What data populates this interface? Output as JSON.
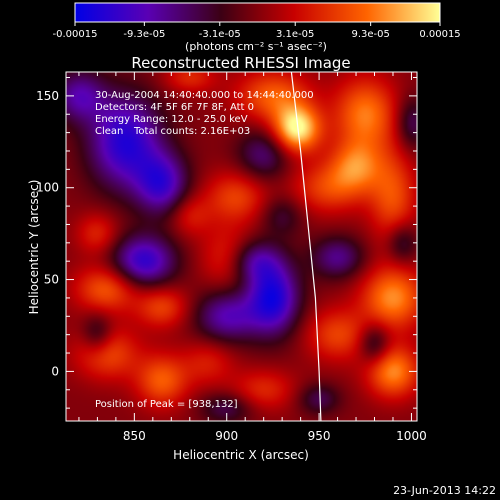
{
  "chart_data": {
    "type": "heatmap",
    "title": "Reconstructed RHESSI Image",
    "xlabel": "Heliocentric X (arcsec)",
    "ylabel": "Heliocentric Y (arcsec)",
    "xlim": [
      813,
      1003
    ],
    "ylim": [
      -27,
      163
    ],
    "x_ticks": [
      850,
      900,
      950,
      1000
    ],
    "y_ticks": [
      0,
      50,
      100,
      150
    ],
    "colorbar": {
      "min": -0.00015,
      "max": 0.00015,
      "tick_labels": [
        "-0.00015",
        "-9.3e-05",
        "-3.1e-05",
        "3.1e-05",
        "9.3e-05",
        "0.00015"
      ],
      "tick_values": [
        -0.00015,
        -9.3e-05,
        -3.1e-05,
        3.1e-05,
        9.3e-05,
        0.00015
      ],
      "unit_label": "(photons cm⁻² s⁻¹ asec⁻²)",
      "colors": [
        "#0000e6",
        "#5a00b4",
        "#3c0014",
        "#c80000",
        "#ff6400",
        "#ffff96"
      ]
    },
    "annotations": [
      "30-Aug-2004 14:40:40.000 to 14:44:40.000",
      "Detectors: 4F 5F 6F 7F 8F, Att 0",
      "Energy Range: 12.0 - 25.0 keV",
      "Clean",
      "Total counts: 2.16E+03"
    ],
    "peak_label": "Position of Peak = [938,132]",
    "peak": {
      "x": 938,
      "y": 132
    },
    "limb_line": [
      [
        935,
        163
      ],
      [
        940,
        120
      ],
      [
        944,
        80
      ],
      [
        948,
        40
      ],
      [
        950,
        0
      ],
      [
        951,
        -27
      ]
    ],
    "sources": [
      {
        "x": 938,
        "y": 132,
        "sx": 9,
        "sy": 9,
        "a": 1.0
      },
      {
        "x": 925,
        "y": 150,
        "sx": 14,
        "sy": 10,
        "a": 0.55
      },
      {
        "x": 975,
        "y": 140,
        "sx": 12,
        "sy": 14,
        "a": 0.65
      },
      {
        "x": 970,
        "y": 112,
        "sx": 10,
        "sy": 10,
        "a": 0.55
      },
      {
        "x": 990,
        "y": 95,
        "sx": 9,
        "sy": 18,
        "a": 0.5
      },
      {
        "x": 955,
        "y": 100,
        "sx": 14,
        "sy": 10,
        "a": 0.45
      },
      {
        "x": 990,
        "y": 40,
        "sx": 12,
        "sy": 12,
        "a": 0.7
      },
      {
        "x": 990,
        "y": 0,
        "sx": 10,
        "sy": 10,
        "a": 0.7
      },
      {
        "x": 960,
        "y": 20,
        "sx": 12,
        "sy": 10,
        "a": 0.45
      },
      {
        "x": 905,
        "y": 95,
        "sx": 12,
        "sy": 10,
        "a": 0.45
      },
      {
        "x": 900,
        "y": 62,
        "sx": 10,
        "sy": 12,
        "a": 0.35
      },
      {
        "x": 835,
        "y": 45,
        "sx": 12,
        "sy": 9,
        "a": 0.55
      },
      {
        "x": 865,
        "y": 35,
        "sx": 10,
        "sy": 8,
        "a": 0.45
      },
      {
        "x": 835,
        "y": 10,
        "sx": 12,
        "sy": 10,
        "a": 0.5
      },
      {
        "x": 865,
        "y": -5,
        "sx": 10,
        "sy": 10,
        "a": 0.55
      },
      {
        "x": 890,
        "y": 5,
        "sx": 10,
        "sy": 9,
        "a": 0.3
      },
      {
        "x": 920,
        "y": -10,
        "sx": 12,
        "sy": 8,
        "a": 0.35
      },
      {
        "x": 830,
        "y": 75,
        "sx": 8,
        "sy": 8,
        "a": 0.35
      },
      {
        "x": 880,
        "y": 85,
        "sx": 8,
        "sy": 8,
        "a": 0.3
      },
      {
        "x": 880,
        "y": 160,
        "sx": 10,
        "sy": 6,
        "a": 0.35
      },
      {
        "x": 845,
        "y": 125,
        "sx": 14,
        "sy": 18,
        "a": -0.85
      },
      {
        "x": 865,
        "y": 102,
        "sx": 10,
        "sy": 12,
        "a": -0.7
      },
      {
        "x": 820,
        "y": 150,
        "sx": 10,
        "sy": 10,
        "a": -0.55
      },
      {
        "x": 855,
        "y": 60,
        "sx": 12,
        "sy": 10,
        "a": -0.8
      },
      {
        "x": 900,
        "y": 30,
        "sx": 12,
        "sy": 10,
        "a": -0.6
      },
      {
        "x": 925,
        "y": 40,
        "sx": 10,
        "sy": 14,
        "a": -0.9
      },
      {
        "x": 915,
        "y": 60,
        "sx": 10,
        "sy": 8,
        "a": -0.5
      },
      {
        "x": 960,
        "y": 62,
        "sx": 10,
        "sy": 8,
        "a": -0.5
      },
      {
        "x": 920,
        "y": 118,
        "sx": 10,
        "sy": 10,
        "a": -0.45
      },
      {
        "x": 830,
        "y": 20,
        "sx": 6,
        "sy": 8,
        "a": -0.4
      },
      {
        "x": 1000,
        "y": 135,
        "sx": 6,
        "sy": 10,
        "a": -0.4
      },
      {
        "x": 995,
        "y": 70,
        "sx": 6,
        "sy": 8,
        "a": -0.4
      },
      {
        "x": 980,
        "y": 15,
        "sx": 6,
        "sy": 8,
        "a": -0.45
      },
      {
        "x": 900,
        "y": -20,
        "sx": 10,
        "sy": 6,
        "a": -0.35
      },
      {
        "x": 950,
        "y": -15,
        "sx": 8,
        "sy": 6,
        "a": -0.35
      },
      {
        "x": 930,
        "y": 85,
        "sx": 8,
        "sy": 8,
        "a": -0.3
      }
    ]
  },
  "footer": {
    "date": "23-Jun-2013 14:22"
  }
}
